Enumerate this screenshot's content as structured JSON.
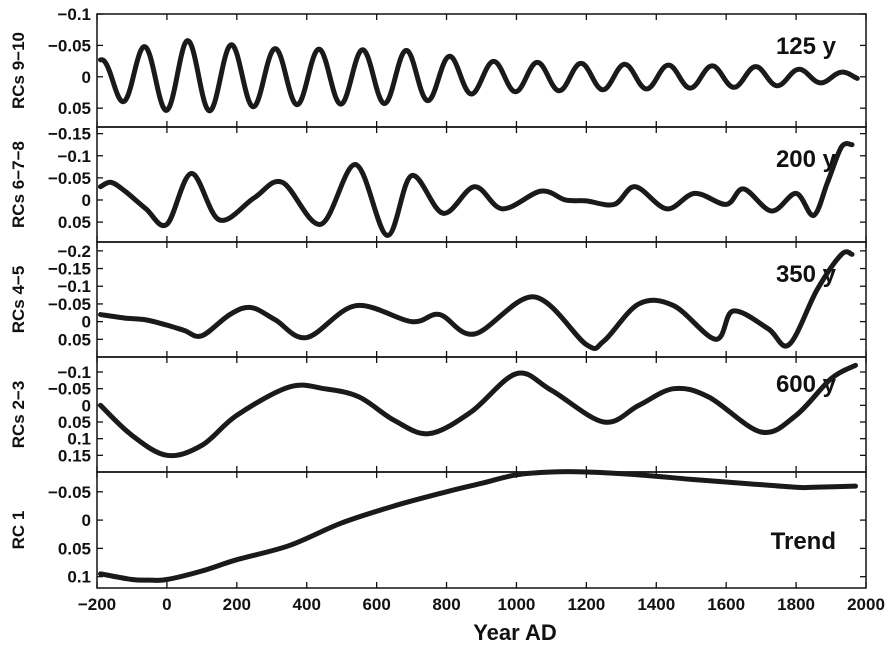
{
  "chart_data": {
    "type": "line",
    "xlabel": "Year AD",
    "xlim": [
      -200,
      2000
    ],
    "xticks": [
      -200,
      0,
      200,
      400,
      600,
      800,
      1000,
      1200,
      1400,
      1600,
      1800,
      2000
    ],
    "xtick_labels": [
      "−200",
      "0",
      "200",
      "400",
      "600",
      "800",
      "1000",
      "1200",
      "1400",
      "1600",
      "1800",
      "2000"
    ],
    "y_inverted": true,
    "line_color": "#1a1a1a",
    "panels": [
      {
        "ylabel": "RCs 9−10",
        "annotation": "125 y",
        "ylim": [
          -0.1,
          0.08
        ],
        "yticks": [
          -0.1,
          -0.05,
          0,
          0.05
        ],
        "ytick_labels": [
          "−0.1",
          "−0.05",
          "0",
          "0.05"
        ],
        "wave": {
          "baseline": 0,
          "period": 125,
          "amplitude_envelope": [
            [
              -200,
              0.025
            ],
            [
              -100,
              0.045
            ],
            [
              50,
              0.058
            ],
            [
              300,
              0.045
            ],
            [
              700,
              0.042
            ],
            [
              900,
              0.025
            ],
            [
              1300,
              0.02
            ],
            [
              1700,
              0.016
            ],
            [
              2000,
              0.005
            ]
          ],
          "phase_peak_year": 60
        }
      },
      {
        "ylabel": "RCs 6−7−8",
        "annotation": "200 y",
        "ylim": [
          -0.165,
          0.095
        ],
        "yticks": [
          -0.15,
          -0.1,
          -0.05,
          0,
          0.05
        ],
        "ytick_labels": [
          "−0.15",
          "−0.1",
          "−0.05",
          "0",
          "0.05"
        ],
        "x": [
          -190,
          -160,
          -120,
          -60,
          0,
          70,
          150,
          250,
          330,
          440,
          540,
          630,
          700,
          790,
          880,
          960,
          1070,
          1140,
          1200,
          1280,
          1340,
          1430,
          1510,
          1600,
          1650,
          1730,
          1800,
          1850,
          1890,
          1930,
          1960
        ],
        "y": [
          -0.03,
          -0.04,
          -0.02,
          0.02,
          0.055,
          -0.06,
          0.045,
          -0.005,
          -0.04,
          0.055,
          -0.08,
          0.08,
          -0.055,
          0.03,
          -0.03,
          0.02,
          -0.02,
          0.0,
          0.002,
          0.01,
          -0.03,
          0.02,
          -0.015,
          0.01,
          -0.025,
          0.025,
          -0.015,
          0.035,
          -0.04,
          -0.12,
          -0.125
        ]
      },
      {
        "ylabel": "RCs 4−5",
        "annotation": "350 y",
        "ylim": [
          -0.225,
          0.1
        ],
        "yticks": [
          -0.2,
          -0.15,
          -0.1,
          -0.05,
          0,
          0.05
        ],
        "ytick_labels": [
          "−0.2",
          "−0.15",
          "−0.1",
          "−0.05",
          "0",
          "0.05"
        ],
        "x": [
          -190,
          -120,
          -60,
          0,
          50,
          100,
          180,
          240,
          310,
          400,
          540,
          700,
          780,
          880,
          1050,
          1200,
          1250,
          1350,
          1450,
          1570,
          1620,
          1720,
          1780,
          1860,
          1930,
          1960
        ],
        "y": [
          -0.02,
          -0.01,
          -0.005,
          0.01,
          0.025,
          0.04,
          -0.02,
          -0.04,
          -0.005,
          0.045,
          -0.045,
          0.0,
          -0.02,
          0.035,
          -0.07,
          0.065,
          0.055,
          -0.05,
          -0.045,
          0.05,
          -0.03,
          0.02,
          0.065,
          -0.09,
          -0.19,
          -0.19
        ]
      },
      {
        "ylabel": "RCs 2−3",
        "annotation": "600 y",
        "ylim": [
          -0.145,
          0.2
        ],
        "yticks": [
          -0.1,
          -0.05,
          0,
          0.05,
          0.1,
          0.15
        ],
        "ytick_labels": [
          "−0.1",
          "−0.05",
          "0",
          "0.05",
          "0.1",
          "0.15"
        ],
        "x": [
          -190,
          -100,
          0,
          100,
          200,
          350,
          450,
          550,
          650,
          750,
          870,
          1000,
          1100,
          1250,
          1350,
          1450,
          1550,
          1700,
          1800,
          1900,
          1970
        ],
        "y": [
          0.0,
          0.09,
          0.15,
          0.12,
          0.03,
          -0.055,
          -0.05,
          -0.025,
          0.045,
          0.085,
          0.02,
          -0.095,
          -0.045,
          0.05,
          0.0,
          -0.05,
          -0.025,
          0.08,
          0.03,
          -0.08,
          -0.12
        ]
      },
      {
        "ylabel": "RC 1",
        "annotation": "Trend",
        "ylim": [
          -0.085,
          0.12
        ],
        "yticks": [
          -0.05,
          0,
          0.05,
          0.1
        ],
        "ytick_labels": [
          "−0.05",
          "0",
          "0.05",
          "0.1"
        ],
        "x": [
          -190,
          -100,
          -50,
          0,
          100,
          200,
          350,
          500,
          650,
          800,
          900,
          1000,
          1100,
          1200,
          1350,
          1500,
          1650,
          1800,
          1850,
          1970
        ],
        "y": [
          0.095,
          0.105,
          0.106,
          0.105,
          0.09,
          0.07,
          0.045,
          0.005,
          -0.025,
          -0.05,
          -0.065,
          -0.08,
          -0.085,
          -0.085,
          -0.08,
          -0.072,
          -0.065,
          -0.058,
          -0.058,
          -0.06
        ]
      }
    ]
  }
}
